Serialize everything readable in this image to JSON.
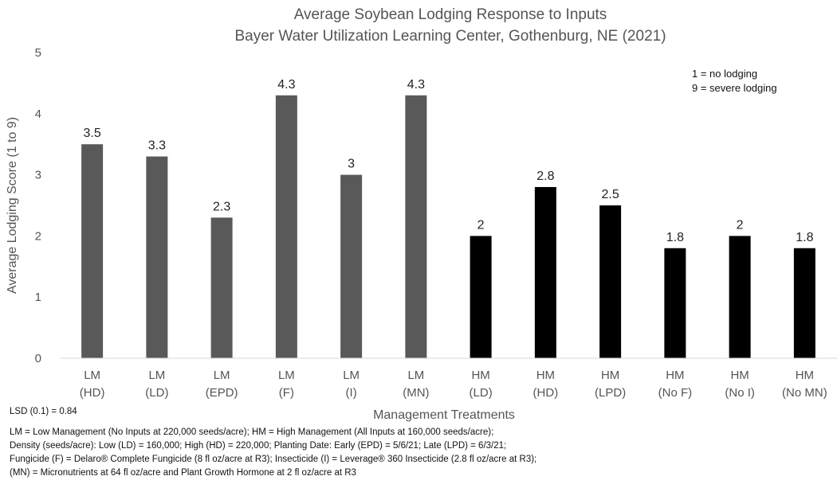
{
  "chart_data": {
    "type": "bar",
    "title": "Average Soybean Lodging Response to Inputs",
    "subtitle": "Bayer Water Utilization Learning Center, Gothenburg, NE (2021)",
    "xlabel": "Management Treatments",
    "ylabel": "Average Lodging Score (1 to 9)",
    "ylim": [
      0,
      5
    ],
    "yticks": [
      0,
      1,
      2,
      3,
      4,
      5
    ],
    "grid": false,
    "categories": [
      [
        "LM",
        "(HD)"
      ],
      [
        "LM",
        "(LD)"
      ],
      [
        "LM",
        "(EPD)"
      ],
      [
        "LM",
        "(F)"
      ],
      [
        "LM",
        "(I)"
      ],
      [
        "LM",
        "(MN)"
      ],
      [
        "HM",
        "(LD)"
      ],
      [
        "HM",
        "(HD)"
      ],
      [
        "HM",
        "(LPD)"
      ],
      [
        "HM",
        "(No F)"
      ],
      [
        "HM",
        "(No I)"
      ],
      [
        "HM",
        "(No MN)"
      ]
    ],
    "values": [
      3.5,
      3.3,
      2.3,
      4.3,
      3,
      4.3,
      2,
      2.8,
      2.5,
      1.8,
      2,
      1.8
    ],
    "data_labels": [
      "3.5",
      "3.3",
      "2.3",
      "4.3",
      "3",
      "4.3",
      "2",
      "2.8",
      "2.5",
      "1.8",
      "2",
      "1.8"
    ],
    "bar_colors": [
      "#595959",
      "#595959",
      "#595959",
      "#595959",
      "#595959",
      "#595959",
      "#000000",
      "#000000",
      "#000000",
      "#000000",
      "#000000",
      "#000000"
    ],
    "annotations": [
      "1 = no lodging",
      "9 = severe lodging"
    ]
  },
  "lsd": "LSD (0.1) = 0.84",
  "footnotes": [
    "LM = Low Management (No Inputs at 220,000 seeds/acre); HM = High Management (All Inputs at 160,000 seeds/acre);",
    "Density (seeds/acre): Low (LD) = 160,000; High (HD) = 220,000; Planting Date: Early (EPD) = 5/6/21; Late (LPD) = 6/3/21;",
    "Fungicide (F) = Delaro® Complete Fungicide (8 fl oz/acre at R3); Insecticide (I) = Leverage® 360 Insecticide (2.8 fl oz/acre at R3);",
    "(MN) = Micronutrients at 64 fl oz/acre and Plant Growth Hormone at 2 fl oz/acre at R3"
  ]
}
